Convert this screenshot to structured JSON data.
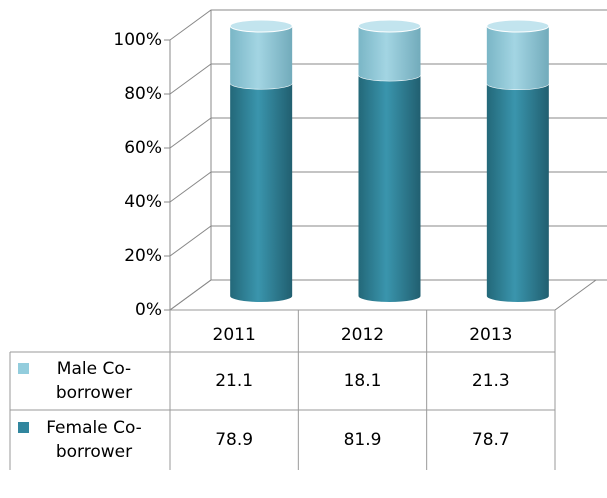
{
  "chart_data": {
    "type": "stacked-cylinder",
    "categories": [
      "2011",
      "2012",
      "2013"
    ],
    "series": [
      {
        "name": "Female Co-borrower",
        "color": "#31869e",
        "values": [
          78.9,
          81.9,
          78.7
        ]
      },
      {
        "name": "Male Co-borrower",
        "color": "#93cddd",
        "values": [
          21.1,
          18.1,
          21.3
        ]
      }
    ],
    "ylim": [
      0,
      100
    ],
    "yticks": [
      {
        "value": 0,
        "label": "0%"
      },
      {
        "value": 20,
        "label": "20%"
      },
      {
        "value": 40,
        "label": "40%"
      },
      {
        "value": 60,
        "label": "60%"
      },
      {
        "value": 80,
        "label": "80%"
      },
      {
        "value": 100,
        "label": "100%"
      }
    ],
    "grid": true
  }
}
